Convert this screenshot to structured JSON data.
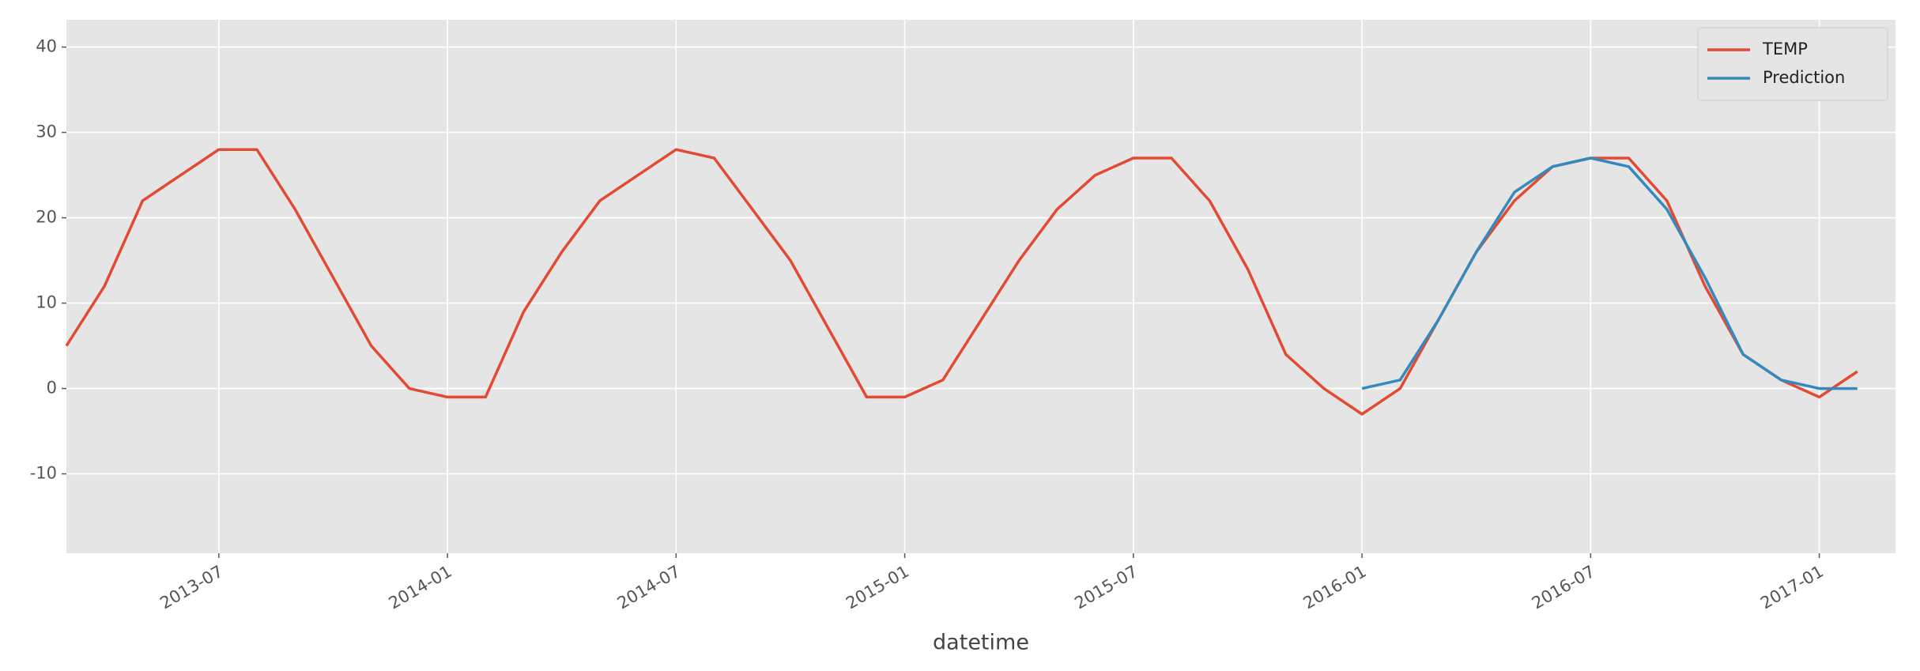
{
  "chart_data": {
    "type": "line",
    "x_label": "datetime",
    "x": [
      "2013-03",
      "2013-04",
      "2013-05",
      "2013-06",
      "2013-07",
      "2013-08",
      "2013-09",
      "2013-10",
      "2013-11",
      "2013-12",
      "2014-01",
      "2014-02",
      "2014-03",
      "2014-04",
      "2014-05",
      "2014-06",
      "2014-07",
      "2014-08",
      "2014-09",
      "2014-10",
      "2014-11",
      "2014-12",
      "2015-01",
      "2015-02",
      "2015-03",
      "2015-04",
      "2015-05",
      "2015-06",
      "2015-07",
      "2015-08",
      "2015-09",
      "2015-10",
      "2015-11",
      "2015-12",
      "2016-01",
      "2016-02",
      "2016-03",
      "2016-04",
      "2016-05",
      "2016-06",
      "2016-07",
      "2016-08",
      "2016-09",
      "2016-10",
      "2016-11",
      "2016-12",
      "2017-01",
      "2017-02"
    ],
    "series": [
      {
        "name": "TEMP",
        "color": "#E24A33",
        "values": [
          5,
          12,
          22,
          25,
          28,
          28,
          21,
          13,
          5,
          0,
          -1,
          -1,
          9,
          16,
          22,
          25,
          28,
          27,
          21,
          15,
          7,
          -1,
          -1,
          1,
          8,
          15,
          21,
          25,
          27,
          27,
          22,
          14,
          4,
          0,
          -3,
          0,
          8,
          16,
          22,
          26,
          27,
          27,
          22,
          12,
          4,
          1,
          -1,
          2
        ]
      },
      {
        "name": "Prediction",
        "color": "#348ABD",
        "values": [
          null,
          null,
          null,
          null,
          null,
          null,
          null,
          null,
          null,
          null,
          null,
          null,
          null,
          null,
          null,
          null,
          null,
          null,
          null,
          null,
          null,
          null,
          null,
          null,
          null,
          null,
          null,
          null,
          null,
          null,
          null,
          null,
          null,
          null,
          0,
          1,
          8,
          16,
          23,
          26,
          27,
          26,
          21,
          13,
          4,
          1,
          0,
          0
        ]
      }
    ],
    "xlim": [
      "2013-03",
      "2017-03"
    ],
    "xticks": [
      "2013-07",
      "2014-01",
      "2014-07",
      "2015-01",
      "2015-07",
      "2016-01",
      "2016-07",
      "2017-01"
    ],
    "ylim": [
      -19.3,
      43.2
    ],
    "yticks": [
      -10,
      0,
      10,
      20,
      30,
      40
    ],
    "grid": true,
    "legend": "upper right"
  }
}
